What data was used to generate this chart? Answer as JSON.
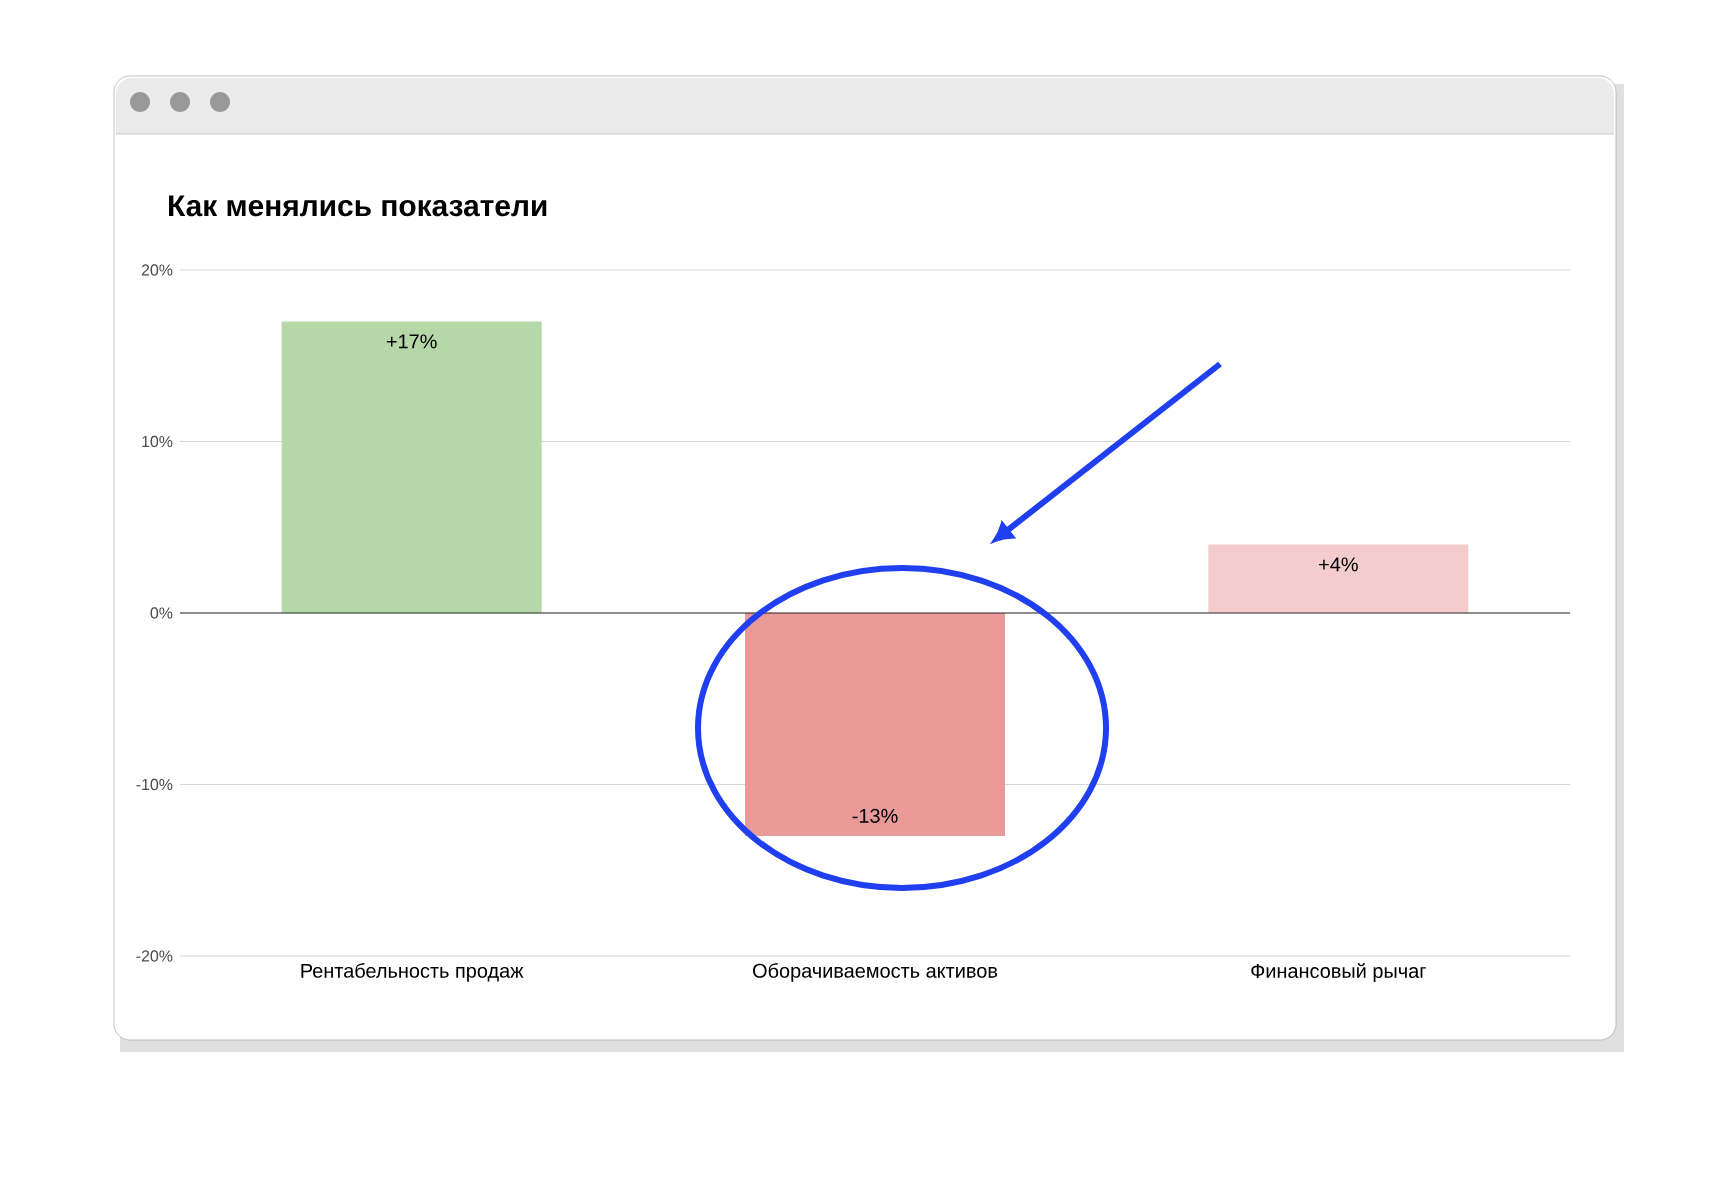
{
  "chart_data": {
    "type": "bar",
    "title": "Как менялись показатели",
    "categories": [
      "Рентабельность продаж",
      "Оборачиваемость активов",
      "Финансовый рычаг"
    ],
    "values": [
      17,
      -13,
      4
    ],
    "colors": [
      "#b6d7a8",
      "#ea9999",
      "#f4cccc"
    ],
    "value_labels": [
      "+17%",
      "-13%",
      "+4%"
    ],
    "ylim": [
      -20,
      20
    ],
    "yticks": [
      {
        "value": -20,
        "label": "-20%"
      },
      {
        "value": -10,
        "label": "-10%"
      },
      {
        "value": 0,
        "label": "0%"
      },
      {
        "value": 10,
        "label": "10%"
      },
      {
        "value": 20,
        "label": "20%"
      }
    ],
    "grid": "y"
  }
}
